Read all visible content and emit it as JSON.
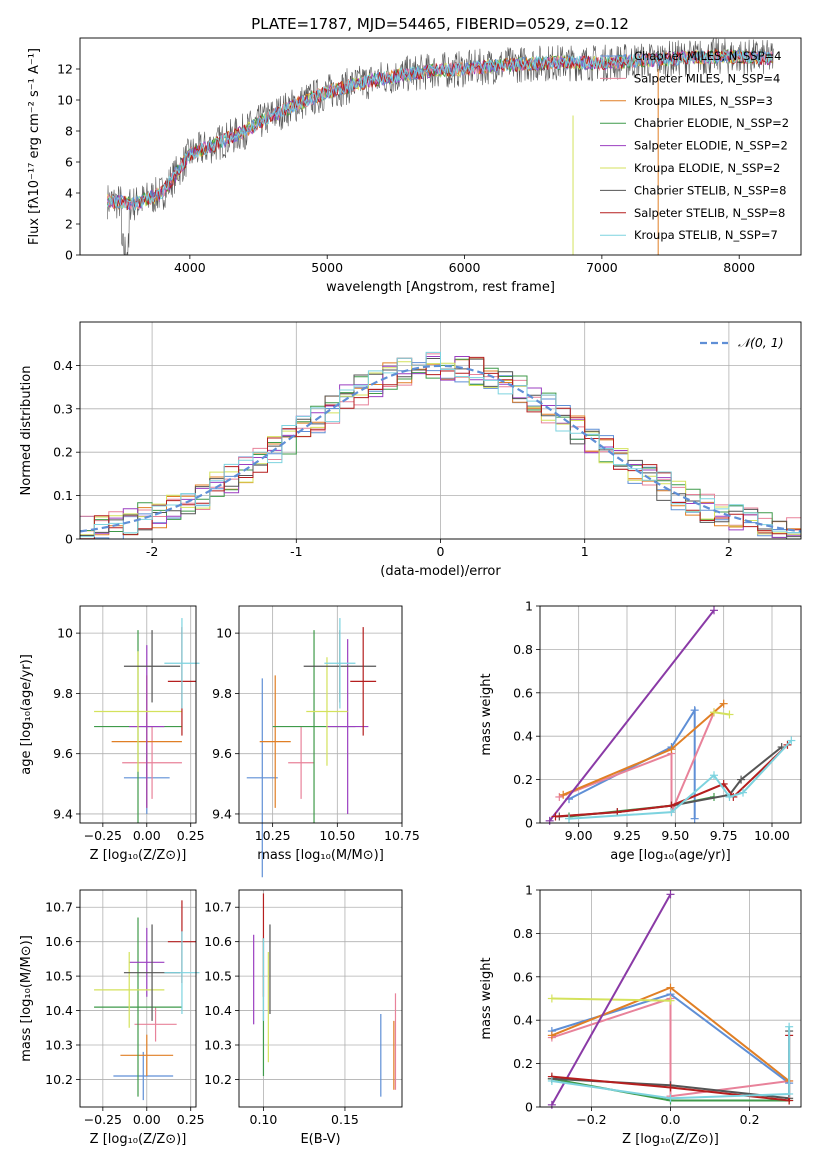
{
  "figure_title": "PLATE=1787, MJD=54465, FIBERID=0529, z=0.12",
  "colors": {
    "chabrier_miles": "#5f8fd6",
    "salpeter_miles": "#e8829a",
    "kroupa_miles": "#e07f25",
    "chabrier_elodie": "#3f9a4a",
    "salpeter_elodie": "#9b3fc1",
    "kroupa_elodie": "#d4e25c",
    "chabrier_stelib": "#555555",
    "salpeter_stelib": "#b51f1f",
    "kroupa_stelib": "#7dd3df",
    "gaussian": "#5f8fd6",
    "purple_line": "#8a3aa6"
  },
  "chart_data": [
    {
      "id": "spectrum",
      "type": "line",
      "title": "PLATE=1787, MJD=54465, FIBERID=0529, z=0.12",
      "xlabel": "wavelength [Angstrom, rest frame]",
      "ylabel": "Flux [fλ10⁻¹⁷ erg cm⁻² s⁻¹ A⁻¹]",
      "xlim": [
        3200,
        8450
      ],
      "ylim": [
        0,
        14
      ],
      "xticks": [
        4000,
        5000,
        6000,
        7000,
        8000
      ],
      "yticks": [
        0,
        2,
        4,
        6,
        8,
        10,
        12
      ],
      "legend_position": "upper right",
      "legend": [
        "Chabrier MILES, N_SSP=4",
        "Salpeter MILES, N_SSP=4",
        "Kroupa MILES, N_SSP=3",
        "Chabrier ELODIE, N_SSP=2",
        "Salpeter ELODIE, N_SSP=2",
        "Kroupa ELODIE, N_SSP=2",
        "Chabrier STELIB, N_SSP=8",
        "Salpeter STELIB, N_SSP=8",
        "Kroupa STELIB, N_SSP=7"
      ],
      "legend_keys": [
        "chabrier_miles",
        "salpeter_miles",
        "kroupa_miles",
        "chabrier_elodie",
        "salpeter_elodie",
        "kroupa_elodie",
        "chabrier_stelib",
        "salpeter_stelib",
        "kroupa_stelib"
      ],
      "data_x": [
        3400,
        3600,
        3800,
        4000,
        4200,
        4400,
        4600,
        4800,
        5000,
        5200,
        5400,
        5600,
        5800,
        6000,
        6200,
        6400,
        6600,
        6800,
        7000,
        7200,
        7400,
        7600,
        7800,
        8000,
        8200
      ],
      "data_y": [
        3.5,
        3.3,
        4.0,
        6.5,
        7.2,
        8.0,
        9.0,
        9.8,
        10.5,
        11.0,
        11.4,
        11.7,
        11.9,
        12.0,
        12.2,
        12.3,
        12.4,
        12.4,
        12.4,
        12.5,
        12.6,
        12.7,
        12.8,
        12.8,
        12.7
      ]
    },
    {
      "id": "residuals",
      "type": "histogram",
      "xlabel": "(data-model)/error",
      "ylabel": "Normed distribution",
      "xlim": [
        -2.5,
        2.5
      ],
      "ylim": [
        0,
        0.5
      ],
      "xticks": [
        -2,
        -1,
        0,
        1,
        2
      ],
      "yticks": [
        0.0,
        0.1,
        0.2,
        0.3,
        0.4
      ],
      "grid": true,
      "legend_position": "upper right",
      "legend": [
        "𝒩(0, 1)"
      ],
      "bin_width": 0.1
    },
    {
      "id": "age_vs_z",
      "type": "errorbar",
      "xlabel": "Z [log₁₀(Z/Z⊙)]",
      "ylabel": "age  [log₁₀(age/yr)]",
      "xlim": [
        -0.38,
        0.28
      ],
      "ylim": [
        9.37,
        10.09
      ],
      "xticks": [
        -0.25,
        0.0,
        0.25
      ],
      "xticklabels": [
        "−0.25",
        "0.00",
        "0.25"
      ],
      "yticks": [
        9.4,
        9.6,
        9.8,
        10.0
      ],
      "grid": true,
      "points": [
        {
          "key": "chabrier_miles",
          "x": 0.0,
          "xerr": 0.13,
          "y": 9.52,
          "yerr": 0.12
        },
        {
          "key": "salpeter_miles",
          "x": 0.03,
          "xerr": 0.17,
          "y": 9.57,
          "yerr": 0.12
        },
        {
          "key": "kroupa_miles",
          "x": 0.0,
          "xerr": 0.2,
          "y": 9.64,
          "yerr": 0.22
        },
        {
          "key": "chabrier_elodie",
          "x": -0.05,
          "xerr": 0.25,
          "y": 9.69,
          "yerr": 0.32
        },
        {
          "key": "salpeter_elodie",
          "x": 0.0,
          "xerr": 0.1,
          "y": 9.69,
          "yerr": 0.27
        },
        {
          "key": "kroupa_elodie",
          "x": -0.05,
          "xerr": 0.25,
          "y": 9.74,
          "yerr": 0.2
        },
        {
          "key": "chabrier_stelib",
          "x": 0.03,
          "xerr": 0.16,
          "y": 9.89,
          "yerr": 0.12
        },
        {
          "key": "salpeter_stelib",
          "x": 0.2,
          "xerr": 0.08,
          "y": 9.84,
          "yerr": 0.18
        },
        {
          "key": "kroupa_stelib",
          "x": 0.2,
          "xerr": 0.1,
          "y": 9.9,
          "yerr": 0.15
        }
      ]
    },
    {
      "id": "age_vs_mass",
      "type": "errorbar",
      "xlabel": "mass [log₁₀(M/M⊙)]",
      "xlim": [
        10.12,
        10.75
      ],
      "ylim": [
        9.37,
        10.09
      ],
      "xticks": [
        10.25,
        10.5,
        10.75
      ],
      "xticklabels": [
        "10.25",
        "10.50",
        "10.75"
      ],
      "yticks": [
        9.4,
        9.6,
        9.8,
        10.0
      ],
      "grid": true,
      "points": [
        {
          "key": "chabrier_miles",
          "x": 10.21,
          "xerr": 0.06,
          "y": 9.52,
          "yerr": 0.33
        },
        {
          "key": "salpeter_miles",
          "x": 10.36,
          "xerr": 0.05,
          "y": 9.57,
          "yerr": 0.12
        },
        {
          "key": "kroupa_miles",
          "x": 10.26,
          "xerr": 0.06,
          "y": 9.64,
          "yerr": 0.22
        },
        {
          "key": "chabrier_elodie",
          "x": 10.41,
          "xerr": 0.16,
          "y": 9.69,
          "yerr": 0.32
        },
        {
          "key": "salpeter_elodie",
          "x": 10.54,
          "xerr": 0.08,
          "y": 9.69,
          "yerr": 0.29
        },
        {
          "key": "kroupa_elodie",
          "x": 10.46,
          "xerr": 0.08,
          "y": 9.74,
          "yerr": 0.18
        },
        {
          "key": "chabrier_stelib",
          "x": 10.51,
          "xerr": 0.14,
          "y": 9.89,
          "yerr": 0.12
        },
        {
          "key": "salpeter_stelib",
          "x": 10.6,
          "xerr": 0.05,
          "y": 9.84,
          "yerr": 0.18
        },
        {
          "key": "kroupa_stelib",
          "x": 10.51,
          "xerr": 0.06,
          "y": 9.9,
          "yerr": 0.15
        }
      ]
    },
    {
      "id": "weight_vs_age",
      "type": "line",
      "xlabel": "age  [log₁₀(age/yr)]",
      "ylabel": "mass weight",
      "xlim": [
        8.8,
        10.15
      ],
      "ylim": [
        0,
        1.0
      ],
      "xticks": [
        9.0,
        9.25,
        9.5,
        9.75,
        10.0
      ],
      "xticklabels": [
        "9.00",
        "9.25",
        "9.50",
        "9.75",
        "10.00"
      ],
      "yticks": [
        0.0,
        0.2,
        0.4,
        0.6,
        0.8,
        1.0
      ],
      "grid": true,
      "series": [
        {
          "key": "chabrier_miles",
          "x": [
            8.95,
            9.48,
            9.6,
            9.6
          ],
          "y": [
            0.11,
            0.35,
            0.52,
            0.02
          ]
        },
        {
          "key": "salpeter_miles",
          "x": [
            8.9,
            9.48,
            9.48,
            9.7
          ],
          "y": [
            0.12,
            0.32,
            0.05,
            0.51
          ]
        },
        {
          "key": "kroupa_miles",
          "x": [
            8.92,
            9.48,
            9.75
          ],
          "y": [
            0.13,
            0.34,
            0.55
          ]
        },
        {
          "key": "kroupa_elodie",
          "x": [
            9.7,
            9.78
          ],
          "y": [
            0.51,
            0.5
          ]
        },
        {
          "key": "chabrier_elodie",
          "x": [
            8.95,
            9.48,
            9.7
          ],
          "y": [
            0.03,
            0.08,
            0.12
          ]
        },
        {
          "key": "salpeter_elodie",
          "x": [
            8.85,
            9.7
          ],
          "y": [
            0.01,
            0.98
          ]
        },
        {
          "key": "chabrier_stelib",
          "x": [
            8.9,
            9.2,
            9.48,
            9.78,
            9.84,
            10.05
          ],
          "y": [
            0.03,
            0.05,
            0.08,
            0.13,
            0.2,
            0.35
          ]
        },
        {
          "key": "salpeter_stelib",
          "x": [
            8.88,
            9.2,
            9.48,
            9.75,
            9.8,
            10.08
          ],
          "y": [
            0.03,
            0.05,
            0.08,
            0.18,
            0.12,
            0.36
          ]
        },
        {
          "key": "kroupa_stelib",
          "x": [
            8.95,
            9.48,
            9.7,
            9.78,
            9.85,
            10.1
          ],
          "y": [
            0.02,
            0.05,
            0.22,
            0.12,
            0.14,
            0.38
          ]
        }
      ]
    },
    {
      "id": "mass_vs_z",
      "type": "errorbar",
      "xlabel": "Z [log₁₀(Z/Z⊙)]",
      "ylabel": "mass [log₁₀(M/M⊙)]",
      "xlim": [
        -0.38,
        0.28
      ],
      "ylim": [
        10.12,
        10.75
      ],
      "xticks": [
        -0.25,
        0.0,
        0.25
      ],
      "xticklabels": [
        "−0.25",
        "0.00",
        "0.25"
      ],
      "yticks": [
        10.2,
        10.3,
        10.4,
        10.5,
        10.6,
        10.7
      ],
      "grid": true,
      "points": [
        {
          "key": "chabrier_miles",
          "x": -0.02,
          "xerr": 0.17,
          "y": 10.21,
          "yerr": 0.07
        },
        {
          "key": "salpeter_miles",
          "x": 0.05,
          "xerr": 0.12,
          "y": 10.36,
          "yerr": 0.05
        },
        {
          "key": "kroupa_miles",
          "x": 0.0,
          "xerr": 0.15,
          "y": 10.27,
          "yerr": 0.06
        },
        {
          "key": "chabrier_elodie",
          "x": -0.05,
          "xerr": 0.25,
          "y": 10.41,
          "yerr": 0.26
        },
        {
          "key": "salpeter_elodie",
          "x": 0.0,
          "xerr": 0.1,
          "y": 10.54,
          "yerr": 0.1
        },
        {
          "key": "kroupa_elodie",
          "x": -0.1,
          "xerr": 0.2,
          "y": 10.46,
          "yerr": 0.11
        },
        {
          "key": "chabrier_stelib",
          "x": 0.03,
          "xerr": 0.16,
          "y": 10.51,
          "yerr": 0.14
        },
        {
          "key": "salpeter_stelib",
          "x": 0.2,
          "xerr": 0.08,
          "y": 10.6,
          "yerr": 0.12
        },
        {
          "key": "kroupa_stelib",
          "x": 0.2,
          "xerr": 0.1,
          "y": 10.51,
          "yerr": 0.12
        }
      ]
    },
    {
      "id": "mass_vs_ebv",
      "type": "errorbar",
      "xlabel": "E(B-V)",
      "xlim": [
        0.085,
        0.185
      ],
      "ylim": [
        10.12,
        10.75
      ],
      "xticks": [
        0.1,
        0.15
      ],
      "xticklabels": [
        "0.10",
        "0.15"
      ],
      "yticks": [
        10.2,
        10.3,
        10.4,
        10.5,
        10.6,
        10.7
      ],
      "grid": true,
      "points": [
        {
          "key": "chabrier_miles",
          "x": 0.172,
          "y": 10.27,
          "yerr": 0.12
        },
        {
          "key": "salpeter_miles",
          "x": 0.181,
          "y": 10.31,
          "yerr": 0.14
        },
        {
          "key": "kroupa_miles",
          "x": 0.18,
          "y": 10.27,
          "yerr": 0.1
        },
        {
          "key": "chabrier_elodie",
          "x": 0.1,
          "y": 10.41,
          "yerr": 0.2
        },
        {
          "key": "salpeter_elodie",
          "x": 0.094,
          "y": 10.49,
          "yerr": 0.13
        },
        {
          "key": "kroupa_elodie",
          "x": 0.103,
          "y": 10.41,
          "yerr": 0.16
        },
        {
          "key": "chabrier_stelib",
          "x": 0.104,
          "y": 10.52,
          "yerr": 0.13
        },
        {
          "key": "salpeter_stelib",
          "x": 0.1,
          "y": 10.59,
          "yerr": 0.15
        },
        {
          "key": "kroupa_stelib",
          "x": 0.1,
          "y": 10.49,
          "yerr": 0.12
        }
      ]
    },
    {
      "id": "weight_vs_z",
      "type": "line",
      "xlabel": "Z [log₁₀(Z/Z⊙)]",
      "ylabel": "mass weight",
      "xlim": [
        -0.33,
        0.33
      ],
      "ylim": [
        0,
        1.0
      ],
      "xticks": [
        -0.2,
        0.0,
        0.2
      ],
      "xticklabels": [
        "−0.2",
        "0.0",
        "0.2"
      ],
      "yticks": [
        0.0,
        0.2,
        0.4,
        0.6,
        0.8,
        1.0
      ],
      "grid": true,
      "series": [
        {
          "key": "chabrier_miles",
          "x": [
            -0.3,
            0.0,
            0.3
          ],
          "y": [
            0.35,
            0.52,
            0.11
          ]
        },
        {
          "key": "salpeter_miles",
          "x": [
            -0.3,
            0.0,
            0.0,
            0.3
          ],
          "y": [
            0.32,
            0.5,
            0.05,
            0.12
          ]
        },
        {
          "key": "kroupa_miles",
          "x": [
            -0.3,
            0.0,
            0.3
          ],
          "y": [
            0.33,
            0.55,
            0.12
          ]
        },
        {
          "key": "kroupa_elodie",
          "x": [
            -0.3,
            0.0
          ],
          "y": [
            0.5,
            0.49
          ]
        },
        {
          "key": "salpeter_elodie",
          "x": [
            -0.3,
            0.0
          ],
          "y": [
            0.01,
            0.98
          ]
        },
        {
          "key": "chabrier_elodie",
          "x": [
            -0.3,
            0.0,
            0.3
          ],
          "y": [
            0.13,
            0.03,
            0.03
          ]
        },
        {
          "key": "chabrier_stelib",
          "x": [
            -0.3,
            0.0,
            0.3,
            0.3
          ],
          "y": [
            0.13,
            0.1,
            0.04,
            0.35
          ]
        },
        {
          "key": "salpeter_stelib",
          "x": [
            -0.3,
            0.0,
            0.3,
            0.3
          ],
          "y": [
            0.14,
            0.09,
            0.03,
            0.33
          ]
        },
        {
          "key": "kroupa_stelib",
          "x": [
            -0.3,
            0.0,
            0.3,
            0.3
          ],
          "y": [
            0.12,
            0.04,
            0.06,
            0.37
          ]
        }
      ]
    }
  ]
}
